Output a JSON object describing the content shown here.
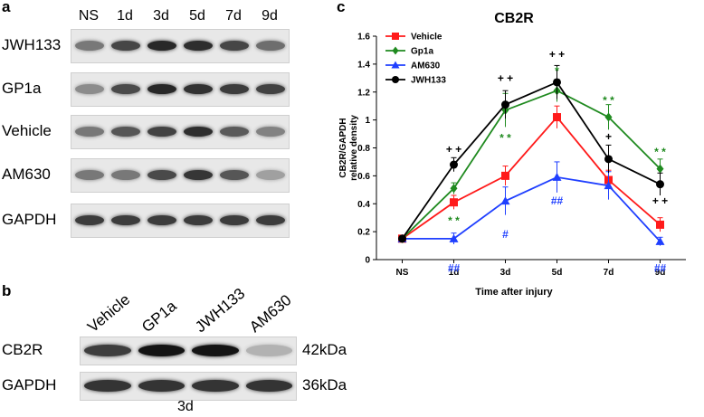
{
  "panels": {
    "a": {
      "letter": "a",
      "lanes": [
        "NS",
        "1d",
        "3d",
        "5d",
        "7d",
        "9d"
      ],
      "rows": [
        {
          "label": "JWH133",
          "intensity": [
            0.55,
            0.8,
            0.95,
            0.92,
            0.8,
            0.6
          ]
        },
        {
          "label": "GP1a",
          "intensity": [
            0.45,
            0.78,
            0.95,
            0.9,
            0.85,
            0.82
          ]
        },
        {
          "label": "Vehicle",
          "intensity": [
            0.55,
            0.72,
            0.82,
            0.92,
            0.7,
            0.5
          ]
        },
        {
          "label": "AM630",
          "intensity": [
            0.55,
            0.55,
            0.78,
            0.88,
            0.72,
            0.35
          ]
        },
        {
          "label": "GAPDH",
          "intensity": [
            0.85,
            0.85,
            0.85,
            0.85,
            0.85,
            0.85
          ]
        }
      ]
    },
    "b": {
      "letter": "b",
      "lanes": [
        "Vehicle",
        "GP1a",
        "JWH133",
        "AM630"
      ],
      "rows": [
        {
          "label": "CB2R",
          "kda": "42kDa",
          "intensity": [
            0.8,
            1.0,
            1.0,
            0.25
          ]
        },
        {
          "label": "GAPDH",
          "kda": "36kDa",
          "intensity": [
            0.85,
            0.85,
            0.85,
            0.85
          ]
        }
      ],
      "caption": "3d"
    },
    "c": {
      "letter": "c"
    }
  },
  "chart_data": {
    "type": "line",
    "title": "CB2R",
    "xlabel": "Time after injury",
    "ylabel": "CB2R/GAPDH relative density",
    "categories": [
      "NS",
      "1d",
      "3d",
      "5d",
      "7d",
      "9d"
    ],
    "ylim": [
      0,
      1.6
    ],
    "yticks": [
      "0",
      "0.2",
      "0.4",
      "0.6",
      "0.8",
      "1",
      "1.2",
      "1.4",
      "1.6"
    ],
    "legend_position": "top-left",
    "series": [
      {
        "name": "Vehicle",
        "color": "#ff1a1a",
        "marker": "square",
        "values": [
          0.15,
          0.41,
          0.6,
          1.02,
          0.57,
          0.25
        ],
        "errors": [
          0.0,
          0.05,
          0.07,
          0.08,
          0.07,
          0.05
        ]
      },
      {
        "name": "Gp1a",
        "color": "#1f8a1f",
        "marker": "diamond",
        "values": [
          0.15,
          0.51,
          1.07,
          1.21,
          1.02,
          0.65
        ],
        "errors": [
          0.0,
          0.04,
          0.12,
          0.08,
          0.09,
          0.07
        ]
      },
      {
        "name": "AM630",
        "color": "#1f3fff",
        "marker": "triangle",
        "values": [
          0.15,
          0.15,
          0.42,
          0.59,
          0.53,
          0.13
        ],
        "errors": [
          0.0,
          0.04,
          0.1,
          0.11,
          0.1,
          0.03
        ]
      },
      {
        "name": "JWH133",
        "color": "#000000",
        "marker": "circle",
        "values": [
          0.15,
          0.68,
          1.11,
          1.27,
          0.72,
          0.54
        ],
        "errors": [
          0.0,
          0.05,
          0.1,
          0.12,
          0.1,
          0.08
        ]
      }
    ],
    "annotations": [
      {
        "x": "1d",
        "y": 0.79,
        "text": "+ +",
        "color": "#000000"
      },
      {
        "x": "3d",
        "y": 1.3,
        "text": "+ +",
        "color": "#000000"
      },
      {
        "x": "5d",
        "y": 1.47,
        "text": "+ +",
        "color": "#000000"
      },
      {
        "x": "7d",
        "y": 0.88,
        "text": "+",
        "color": "#000000"
      },
      {
        "x": "9d",
        "y": 0.42,
        "text": "+ +",
        "color": "#000000"
      },
      {
        "x": "1d",
        "y": 0.28,
        "text": "* *",
        "color": "#1f8a1f"
      },
      {
        "x": "3d",
        "y": 0.87,
        "text": "* *",
        "color": "#1f8a1f"
      },
      {
        "x": "5d",
        "y": 1.35,
        "text": "*",
        "color": "#1f8a1f"
      },
      {
        "x": "7d",
        "y": 1.14,
        "text": "* *",
        "color": "#1f8a1f"
      },
      {
        "x": "9d",
        "y": 0.77,
        "text": "* *",
        "color": "#1f8a1f"
      },
      {
        "x": "1d",
        "y": -0.06,
        "text": "##",
        "color": "#1f3fff"
      },
      {
        "x": "3d",
        "y": 0.18,
        "text": "#",
        "color": "#1f3fff"
      },
      {
        "x": "5d",
        "y": 0.42,
        "text": "##",
        "color": "#1f3fff"
      },
      {
        "x": "9d",
        "y": -0.06,
        "text": "##",
        "color": "#1f3fff"
      }
    ]
  }
}
